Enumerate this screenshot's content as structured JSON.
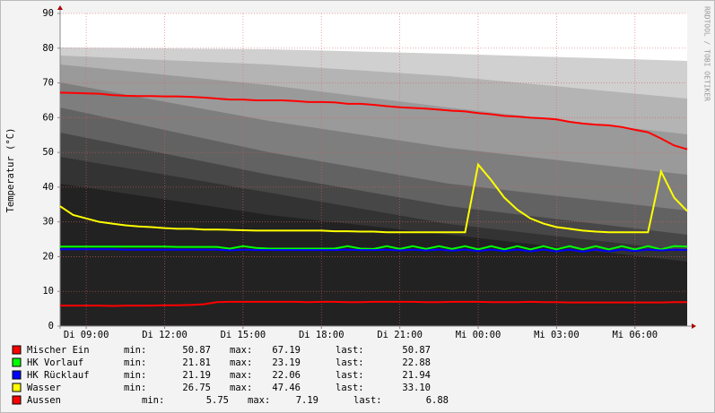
{
  "chart_data": {
    "type": "line",
    "y_label": "Temperatur (°C)",
    "side_text": "RRDTOOL / TOBI OETIKER",
    "xlim": [
      8,
      32
    ],
    "xticks": [
      {
        "value": 9,
        "label": "Di 09:00"
      },
      {
        "value": 12,
        "label": "Di 12:00"
      },
      {
        "value": 15,
        "label": "Di 15:00"
      },
      {
        "value": 18,
        "label": "Di 18:00"
      },
      {
        "value": 21,
        "label": "Di 21:00"
      },
      {
        "value": 24,
        "label": "Mi 00:00"
      },
      {
        "value": 27,
        "label": "Mi 03:00"
      },
      {
        "value": 30,
        "label": "Mi 06:00"
      }
    ],
    "ylim": [
      0,
      90
    ],
    "yticks": [
      0,
      10,
      20,
      30,
      40,
      50,
      60,
      70,
      80,
      90
    ],
    "grid": true,
    "x": [
      8,
      8.5,
      9,
      9.5,
      10,
      10.5,
      11,
      11.5,
      12,
      12.5,
      13,
      13.5,
      14,
      14.5,
      15,
      15.5,
      16,
      16.5,
      17,
      17.5,
      18,
      18.5,
      19,
      19.5,
      20,
      20.5,
      21,
      21.5,
      22,
      22.5,
      23,
      23.5,
      24,
      24.5,
      25,
      25.5,
      26,
      26.5,
      27,
      27.5,
      28,
      28.5,
      29,
      29.5,
      30,
      30.5,
      31,
      31.5,
      32
    ],
    "stat_labels": [
      "min:",
      "max:",
      "last:"
    ],
    "series": [
      {
        "name": "Mischer Ein",
        "color": "#ff0000",
        "stats": [
          "50.87",
          "67.19",
          "50.87"
        ],
        "values": [
          67.2,
          67.1,
          67,
          66.9,
          66.5,
          66.3,
          66.2,
          66.2,
          66.1,
          66.1,
          66,
          65.8,
          65.5,
          65.2,
          65.2,
          65,
          65,
          65,
          64.8,
          64.5,
          64.5,
          64.4,
          64,
          64,
          63.7,
          63.3,
          63,
          62.8,
          62.6,
          62.3,
          62,
          61.8,
          61.3,
          61,
          60.5,
          60.3,
          60,
          59.8,
          59.5,
          58.8,
          58.3,
          58,
          57.8,
          57.3,
          56.5,
          55.8,
          54,
          52,
          50.9
        ]
      },
      {
        "name": "HK Vorlauf",
        "color": "#00ff00",
        "stats": [
          "21.81",
          "23.19",
          "22.88"
        ],
        "values": [
          22.9,
          22.9,
          22.9,
          22.9,
          22.9,
          22.9,
          22.9,
          22.9,
          22.9,
          22.8,
          22.8,
          22.8,
          22.8,
          22.3,
          23,
          22.5,
          22.3,
          22.3,
          22.3,
          22.3,
          22.3,
          22.3,
          23,
          22.3,
          22.2,
          23,
          22.2,
          23,
          22.2,
          23,
          22.2,
          23,
          22.1,
          23,
          22.1,
          23,
          22.1,
          23,
          22.1,
          23,
          22.1,
          23,
          22.1,
          23,
          22.1,
          23,
          22.1,
          23,
          22.9
        ]
      },
      {
        "name": "HK Rücklauf",
        "color": "#0000ff",
        "stats": [
          "21.19",
          "22.06",
          "21.94"
        ],
        "values": [
          22.1,
          22.1,
          22.1,
          22.1,
          22.1,
          22,
          22,
          22,
          22,
          22,
          22,
          22,
          22,
          21.8,
          22,
          21.9,
          21.9,
          21.9,
          21.9,
          21.9,
          21.9,
          21.9,
          22,
          21.9,
          21.9,
          22,
          21.8,
          22,
          21.8,
          22,
          21.7,
          22,
          21.6,
          22,
          21.6,
          22,
          21.5,
          22,
          21.5,
          22,
          21.4,
          22,
          21.5,
          22,
          21.6,
          22,
          21.8,
          22,
          21.9
        ]
      },
      {
        "name": "Wasser",
        "color": "#ffff00",
        "stats": [
          "26.75",
          "47.46",
          "33.10"
        ],
        "values": [
          34.5,
          32,
          31,
          30,
          29.5,
          29,
          28.7,
          28.5,
          28.2,
          28,
          28,
          27.8,
          27.8,
          27.7,
          27.6,
          27.5,
          27.5,
          27.5,
          27.5,
          27.5,
          27.5,
          27.3,
          27.3,
          27.2,
          27.2,
          27,
          27,
          27,
          27,
          27,
          27,
          27,
          46.5,
          42,
          37,
          33.5,
          31,
          29.5,
          28.5,
          28,
          27.5,
          27.2,
          27,
          27,
          27,
          27,
          44.5,
          37,
          33.1
        ]
      },
      {
        "name": "Aussen",
        "color": "#ff0000",
        "stats": [
          "5.75",
          "7.19",
          "6.88"
        ],
        "values": [
          5.9,
          5.9,
          5.9,
          5.9,
          5.8,
          5.9,
          5.9,
          5.9,
          6,
          6,
          6.1,
          6.3,
          6.9,
          7,
          7,
          7,
          7,
          7,
          7,
          6.9,
          7,
          7,
          6.9,
          6.9,
          7,
          7,
          7,
          7,
          6.9,
          6.9,
          7,
          7,
          7,
          6.9,
          6.9,
          6.9,
          7,
          6.9,
          6.9,
          6.8,
          6.8,
          6.8,
          6.8,
          6.8,
          6.8,
          6.8,
          6.8,
          6.9,
          6.9
        ]
      }
    ]
  }
}
